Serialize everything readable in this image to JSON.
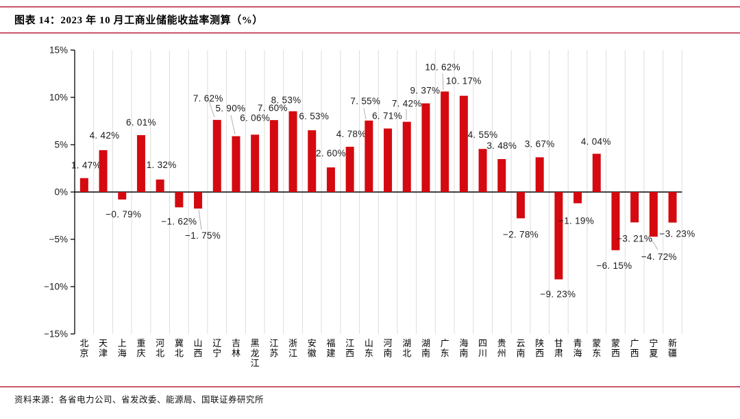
{
  "title": {
    "text": "图表 14：2023 年 10 月工商业储能收益率测算（%）"
  },
  "source": {
    "text": "资料来源：各省电力公司、省发改委、能源局、国联证券研究所"
  },
  "colors": {
    "bar": "#d40a10",
    "rule_line": "#c9566b",
    "gridline": "#dcdcdc",
    "axis": "#000000",
    "leader": "#b0b0b0",
    "label_text": "#1a1a1a"
  },
  "chart_data": {
    "type": "bar",
    "title": "2023 年 10 月工商业储能收益率测算（%）",
    "xlabel": "",
    "ylabel": "",
    "ylim": [
      -15,
      15
    ],
    "grid": "vertical",
    "legend": "none",
    "yticks": [
      "15%",
      "10%",
      "5%",
      "0%",
      "−5%",
      "−10%",
      "−15%"
    ],
    "ytick_values": [
      15,
      10,
      5,
      0,
      -5,
      -10,
      -15
    ],
    "categories": [
      "北京",
      "天津",
      "上海",
      "重庆",
      "河北",
      "冀北",
      "山西",
      "辽宁",
      "吉林",
      "黑龙江",
      "江苏",
      "浙江",
      "安徽",
      "福建",
      "江西",
      "山东",
      "河南",
      "湖北",
      "湖南",
      "广东",
      "海南",
      "四川",
      "贵州",
      "云南",
      "陕西",
      "甘肃",
      "青海",
      "蒙东",
      "蒙西",
      "广西",
      "宁夏",
      "新疆"
    ],
    "values": [
      1.47,
      4.42,
      -0.79,
      6.01,
      1.32,
      -1.62,
      -1.75,
      7.62,
      5.9,
      6.06,
      7.6,
      8.53,
      6.53,
      2.6,
      4.78,
      7.55,
      6.71,
      7.42,
      9.37,
      10.62,
      10.17,
      4.55,
      3.48,
      -2.78,
      3.67,
      -9.23,
      -1.19,
      4.04,
      -6.15,
      -3.21,
      -4.72,
      -3.23
    ],
    "labels": [
      "1. 47%",
      "4. 42%",
      "−0. 79%",
      "6. 01%",
      "1. 32%",
      "−1. 62%",
      "−1. 75%",
      "7. 62%",
      "5. 90%",
      "6. 06%",
      "7. 60%",
      "8. 53%",
      "6. 53%",
      "2. 60%",
      "4. 78%",
      "7. 55%",
      "6. 71%",
      "7. 42%",
      "9. 37%",
      "10. 62%",
      "10. 17%",
      "4. 55%",
      "3. 48%",
      "−2. 78%",
      "3. 67%",
      "−9. 23%",
      "−1. 19%",
      "4. 04%",
      "−6. 15%",
      "−3. 21%",
      "−4. 72%",
      "−3. 23%"
    ],
    "label_layout": {
      "dx": [
        3,
        2,
        2,
        0,
        2,
        0,
        7,
        -13,
        -8,
        0,
        -2,
        -10,
        3,
        0,
        2,
        -5,
        -1,
        0,
        -1,
        -3,
        0,
        0,
        0,
        0,
        0,
        -1,
        -2,
        -1,
        -2,
        0,
        8,
        7
      ],
      "dy": [
        -14,
        -17,
        26,
        -14,
        -17,
        25,
        44,
        -27,
        -36,
        -20,
        -13,
        -12,
        -16,
        -16,
        -14,
        -24,
        -14,
        -22,
        -14,
        -31,
        -17,
        -16,
        -15,
        28,
        -15,
        26,
        30,
        -13,
        27,
        28,
        34,
        21
      ],
      "leaders": {
        "6": [
          290,
          306,
          294,
          335
        ],
        "7": [
          305,
          147,
          313,
          171
        ],
        "8": [
          337,
          168,
          343,
          196
        ],
        "15": [
          531,
          158,
          534,
          174
        ],
        "17": [
          593,
          159,
          593,
          175
        ],
        "19": [
          646,
          107,
          647,
          131
        ],
        "30": [
          950,
          348,
          960,
          364
        ]
      }
    }
  }
}
